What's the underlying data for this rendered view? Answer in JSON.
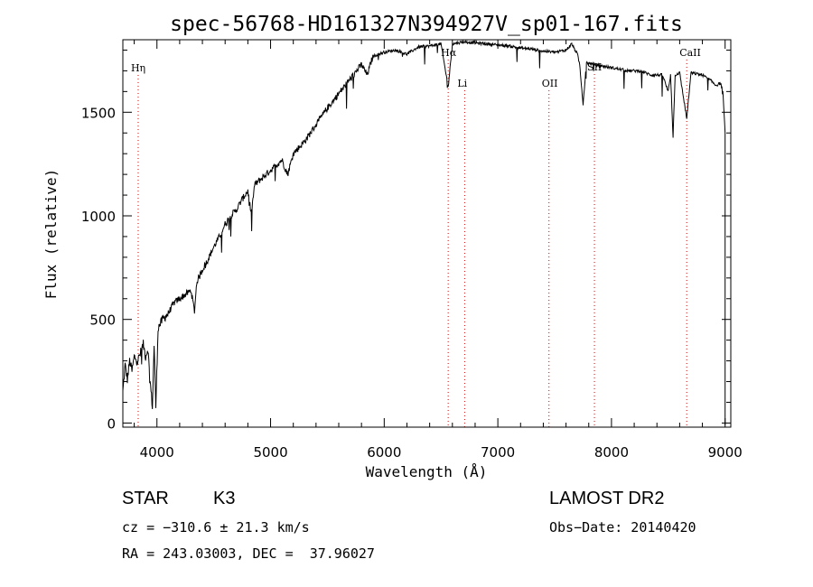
{
  "chart_data": {
    "type": "line",
    "title": "spec-56768-HD161327N394927V_sp01-167.fits",
    "xlabel": "Wavelength (Å)",
    "ylabel": "Flux (relative)",
    "xlim": [
      3700,
      9050
    ],
    "ylim": [
      -20,
      1850
    ],
    "xticks": [
      4000,
      5000,
      6000,
      7000,
      8000,
      9000
    ],
    "yticks": [
      0,
      500,
      1000,
      1500
    ],
    "grid": false,
    "line_color": "#000000",
    "marker_color": "#dd0000",
    "spectrum_outline": [
      [
        3700,
        150
      ],
      [
        3720,
        280
      ],
      [
        3740,
        210
      ],
      [
        3760,
        300
      ],
      [
        3780,
        250
      ],
      [
        3800,
        320
      ],
      [
        3830,
        300
      ],
      [
        3850,
        330
      ],
      [
        3880,
        380
      ],
      [
        3900,
        320
      ],
      [
        3920,
        360
      ],
      [
        3940,
        200
      ],
      [
        3960,
        80
      ],
      [
        3975,
        380
      ],
      [
        3990,
        80
      ],
      [
        4010,
        460
      ],
      [
        4050,
        500
      ],
      [
        4100,
        530
      ],
      [
        4150,
        580
      ],
      [
        4200,
        600
      ],
      [
        4250,
        620
      ],
      [
        4300,
        640
      ],
      [
        4330,
        540
      ],
      [
        4350,
        680
      ],
      [
        4400,
        740
      ],
      [
        4450,
        790
      ],
      [
        4500,
        850
      ],
      [
        4550,
        900
      ],
      [
        4600,
        960
      ],
      [
        4650,
        1000
      ],
      [
        4700,
        1030
      ],
      [
        4750,
        1080
      ],
      [
        4800,
        1120
      ],
      [
        4830,
        1010
      ],
      [
        4860,
        1150
      ],
      [
        4900,
        1170
      ],
      [
        5000,
        1220
      ],
      [
        5100,
        1270
      ],
      [
        5150,
        1200
      ],
      [
        5200,
        1300
      ],
      [
        5300,
        1360
      ],
      [
        5400,
        1440
      ],
      [
        5500,
        1520
      ],
      [
        5600,
        1590
      ],
      [
        5700,
        1660
      ],
      [
        5800,
        1730
      ],
      [
        5850,
        1680
      ],
      [
        5900,
        1770
      ],
      [
        6000,
        1790
      ],
      [
        6100,
        1800
      ],
      [
        6200,
        1780
      ],
      [
        6300,
        1815
      ],
      [
        6400,
        1820
      ],
      [
        6500,
        1830
      ],
      [
        6563,
        1620
      ],
      [
        6600,
        1830
      ],
      [
        6700,
        1840
      ],
      [
        6800,
        1835
      ],
      [
        6900,
        1830
      ],
      [
        7000,
        1825
      ],
      [
        7100,
        1820
      ],
      [
        7200,
        1810
      ],
      [
        7300,
        1805
      ],
      [
        7400,
        1795
      ],
      [
        7500,
        1790
      ],
      [
        7600,
        1800
      ],
      [
        7650,
        1830
      ],
      [
        7700,
        1780
      ],
      [
        7720,
        1730
      ],
      [
        7750,
        1540
      ],
      [
        7780,
        1740
      ],
      [
        7850,
        1730
      ],
      [
        7950,
        1720
      ],
      [
        8050,
        1710
      ],
      [
        8150,
        1700
      ],
      [
        8250,
        1700
      ],
      [
        8350,
        1680
      ],
      [
        8450,
        1680
      ],
      [
        8498,
        1600
      ],
      [
        8520,
        1680
      ],
      [
        8542,
        1380
      ],
      [
        8560,
        1680
      ],
      [
        8600,
        1690
      ],
      [
        8662,
        1470
      ],
      [
        8700,
        1690
      ],
      [
        8800,
        1680
      ],
      [
        8880,
        1650
      ],
      [
        8920,
        1630
      ],
      [
        8960,
        1640
      ],
      [
        8980,
        1600
      ],
      [
        9000,
        1400
      ]
    ],
    "lines": [
      {
        "label": "Hη",
        "wavelength": 3835
      },
      {
        "label": "Hα",
        "wavelength": 6563
      },
      {
        "label": "Li",
        "wavelength": 6708
      },
      {
        "label": "OII",
        "wavelength": 7450
      },
      {
        "label": "SII",
        "wavelength": 7850
      },
      {
        "label": "CaII",
        "wavelength": 8662
      }
    ]
  },
  "info": {
    "class": "STAR",
    "subclass": "K3",
    "survey": "LAMOST DR2",
    "cz": "cz = −310.6 ± 21.3 km/s",
    "obs_date": "Obs−Date: 20140420",
    "coords": "RA = 243.03003, DEC =  37.96027"
  }
}
